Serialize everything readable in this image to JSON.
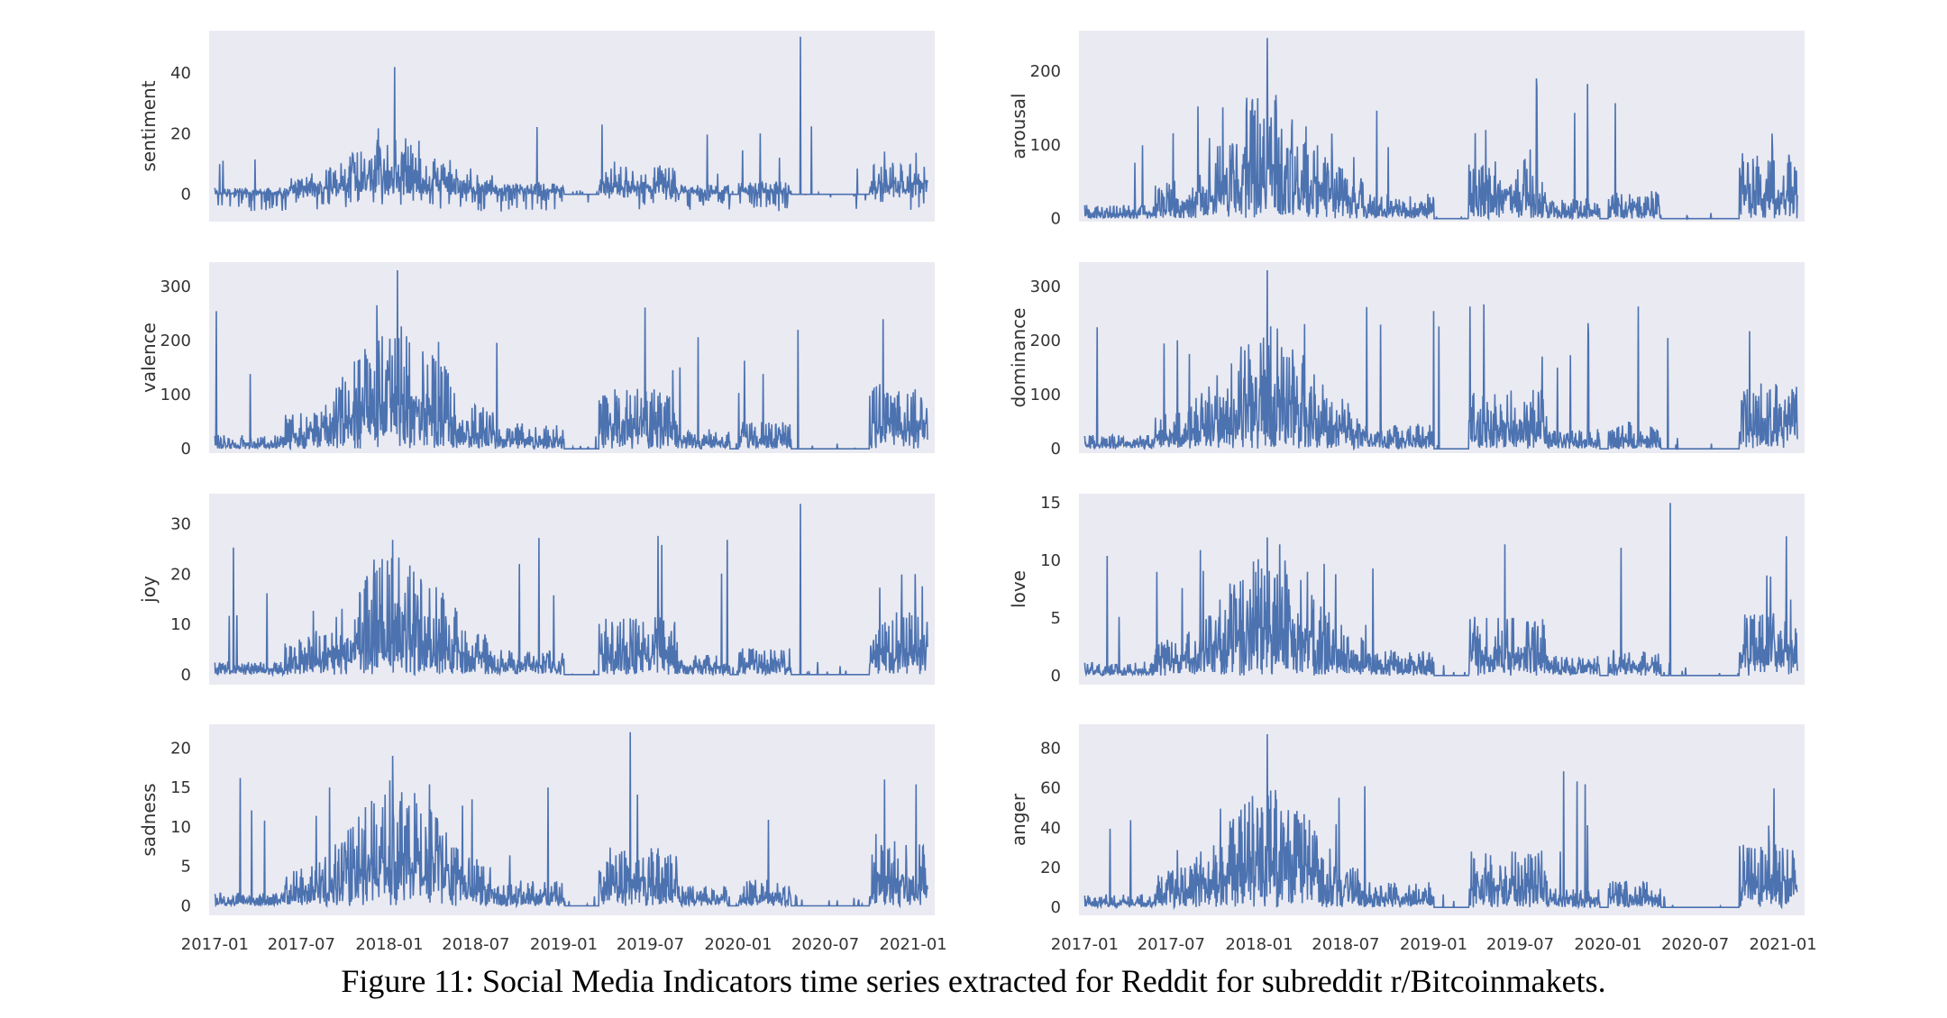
{
  "caption": "Figure 11: Social Media Indicators time series extracted for Reddit for subreddit r/Bitcoinmakets.",
  "colors": {
    "series": "#4c72b0",
    "panel_bg": "#eaeaf2",
    "text": "#333333"
  },
  "chart_data": [
    {
      "type": "line",
      "ylabel": "sentiment",
      "yticks": [
        0,
        20,
        40
      ],
      "ylim": [
        -9,
        54
      ],
      "grid": false,
      "x_range": [
        "2016-12-20",
        "2021-02-15"
      ],
      "xticks": [],
      "series": [
        {
          "values": []
        }
      ]
    },
    {
      "type": "line",
      "ylabel": "arousal",
      "yticks": [
        0,
        100,
        200
      ],
      "ylim": [
        -4,
        255
      ],
      "grid": false,
      "x_range": [
        "2016-12-20",
        "2021-02-15"
      ],
      "xticks": [],
      "series": [
        {
          "values": []
        }
      ]
    },
    {
      "type": "line",
      "ylabel": "valence",
      "yticks": [
        0,
        100,
        200,
        300
      ],
      "ylim": [
        -8,
        345
      ],
      "grid": false,
      "x_range": [
        "2016-12-20",
        "2021-02-15"
      ],
      "xticks": [],
      "series": [
        {
          "values": []
        }
      ]
    },
    {
      "type": "line",
      "ylabel": "dominance",
      "yticks": [
        0,
        100,
        200,
        300
      ],
      "ylim": [
        -8,
        345
      ],
      "grid": false,
      "x_range": [
        "2016-12-20",
        "2021-02-15"
      ],
      "xticks": [],
      "series": [
        {
          "values": []
        }
      ]
    },
    {
      "type": "line",
      "ylabel": "joy",
      "yticks": [
        0,
        10,
        20,
        30
      ],
      "ylim": [
        -2,
        36
      ],
      "grid": false,
      "x_range": [
        "2016-12-20",
        "2021-02-15"
      ],
      "xticks": [],
      "series": [
        {
          "values": []
        }
      ]
    },
    {
      "type": "line",
      "ylabel": "love",
      "yticks": [
        0,
        5,
        10,
        15
      ],
      "ylim": [
        -0.8,
        15.8
      ],
      "grid": false,
      "x_range": [
        "2016-12-20",
        "2021-02-15"
      ],
      "xticks": [],
      "series": [
        {
          "values": []
        }
      ]
    },
    {
      "type": "line",
      "ylabel": "sadness",
      "yticks": [
        0,
        5,
        10,
        15,
        20
      ],
      "ylim": [
        -1.2,
        23
      ],
      "grid": false,
      "x_range": [
        "2016-12-20",
        "2021-02-15"
      ],
      "xticks": [
        "2017-01",
        "2017-07",
        "2018-01",
        "2018-07",
        "2019-01",
        "2019-07",
        "2020-01",
        "2020-07",
        "2021-01"
      ],
      "series": [
        {
          "values": []
        }
      ]
    },
    {
      "type": "line",
      "ylabel": "anger",
      "yticks": [
        0,
        20,
        40,
        60,
        80
      ],
      "ylim": [
        -4,
        92
      ],
      "grid": false,
      "x_range": [
        "2016-12-20",
        "2021-02-15"
      ],
      "xticks": [
        "2017-01",
        "2017-07",
        "2018-01",
        "2018-07",
        "2019-01",
        "2019-07",
        "2020-01",
        "2020-07",
        "2021-01"
      ],
      "series": [
        {
          "values": []
        }
      ]
    }
  ]
}
